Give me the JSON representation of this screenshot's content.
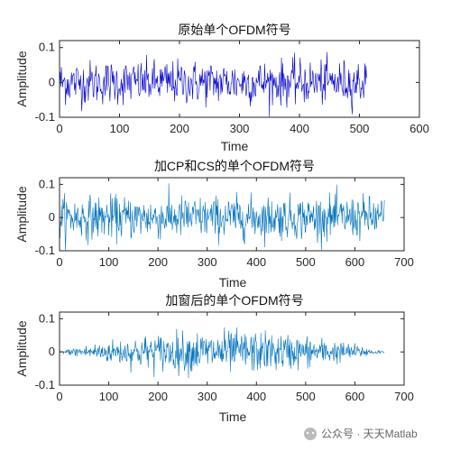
{
  "chart_data": [
    {
      "type": "line",
      "title": "原始单个OFDM符号",
      "xlabel": "Time",
      "ylabel": "Amplitude",
      "xlim": [
        0,
        600
      ],
      "ylim": [
        -0.1,
        0.12
      ],
      "xticks": [
        0,
        100,
        200,
        300,
        400,
        500,
        600
      ],
      "yticks": [
        -0.1,
        0,
        0.1
      ],
      "ytick_labels": [
        "-0.1",
        "0",
        "0.1"
      ],
      "color": "#0000cc",
      "series": [
        {
          "x_range": [
            0,
            512
          ],
          "envelope": "flat",
          "amplitude": 0.07,
          "peak": 0.12
        }
      ]
    },
    {
      "type": "line",
      "title": "加CP和CS的单个OFDM符号",
      "xlabel": "Time",
      "ylabel": "Amplitude",
      "xlim": [
        0,
        700
      ],
      "ylim": [
        -0.1,
        0.12
      ],
      "xticks": [
        0,
        100,
        200,
        300,
        400,
        500,
        600,
        700
      ],
      "yticks": [
        -0.1,
        0,
        0.1
      ],
      "ytick_labels": [
        "-0.1",
        "0",
        "0.1"
      ],
      "color": "#0072bd",
      "series": [
        {
          "x_range": [
            0,
            660
          ],
          "envelope": "flat",
          "amplitude": 0.07,
          "peak": 0.12
        }
      ]
    },
    {
      "type": "line",
      "title": "加窗后的单个OFDM符号",
      "xlabel": "Time",
      "ylabel": "Amplitude",
      "xlim": [
        0,
        700
      ],
      "ylim": [
        -0.1,
        0.12
      ],
      "xticks": [
        0,
        100,
        200,
        300,
        400,
        500,
        600,
        700
      ],
      "yticks": [
        -0.1,
        0,
        0.1
      ],
      "ytick_labels": [
        "-0.1",
        "0",
        "0.1"
      ],
      "color": "#0072bd",
      "series": [
        {
          "x_range": [
            0,
            660
          ],
          "envelope": "tapered",
          "amplitude": 0.07,
          "peak": 0.12
        }
      ]
    }
  ],
  "watermark": {
    "text": "公众号 · 天天Matlab"
  }
}
